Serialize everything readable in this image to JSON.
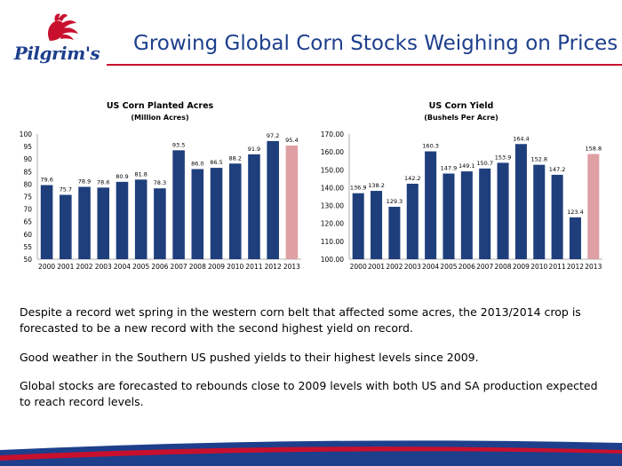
{
  "header": {
    "logo_text": "Pilgrim's",
    "title": "Growing Global Corn Stocks Weighing on Prices"
  },
  "colors": {
    "bar": "#1f3e7c",
    "highlight_bar": "#dea0a3",
    "title": "#1d3f8c",
    "accent": "#c8102e"
  },
  "chart_data": [
    {
      "type": "bar",
      "title": "US Corn Planted Acres",
      "subtitle": "(Million Acres)",
      "categories": [
        "2000",
        "2001",
        "2002",
        "2003",
        "2004",
        "2005",
        "2006",
        "2007",
        "2008",
        "2009",
        "2010",
        "2011",
        "2012",
        "2013"
      ],
      "values": [
        79.6,
        75.7,
        78.9,
        78.6,
        80.9,
        81.8,
        78.3,
        93.5,
        86.0,
        86.5,
        88.2,
        91.9,
        97.2,
        95.4
      ],
      "value_labels": [
        "79.6",
        "75.7",
        "78.9",
        "78.6",
        "80.9",
        "81.8",
        "78.3",
        "93.5",
        "86.0",
        "86.5",
        "88.2",
        "91.9",
        "97.2",
        "95.4"
      ],
      "highlight_index": 13,
      "ylim": [
        50,
        100
      ],
      "yticks": [
        "50",
        "55",
        "60",
        "65",
        "70",
        "75",
        "80",
        "85",
        "90",
        "95",
        "100"
      ],
      "grid": false
    },
    {
      "type": "bar",
      "title": "US Corn Yield",
      "subtitle": "(Bushels Per Acre)",
      "categories": [
        "2000",
        "2001",
        "2002",
        "2003",
        "2004",
        "2005",
        "2006",
        "2007",
        "2008",
        "2009",
        "2010",
        "2011",
        "2012",
        "2013"
      ],
      "values": [
        136.9,
        138.2,
        129.3,
        142.2,
        160.3,
        147.9,
        149.1,
        150.7,
        153.9,
        164.4,
        152.8,
        147.2,
        123.4,
        158.8
      ],
      "value_labels": [
        "136.9",
        "138.2",
        "129.3",
        "142.2",
        "160.3",
        "147.9",
        "149.1",
        "150.7",
        "153.9",
        "164.4",
        "152.8",
        "147.2",
        "123.4",
        "158.8"
      ],
      "highlight_index": 13,
      "ylim": [
        100,
        170
      ],
      "yticks": [
        "100.00",
        "110.00",
        "120.00",
        "130.00",
        "140.00",
        "150.00",
        "160.00",
        "170.00"
      ],
      "grid": false
    }
  ],
  "body": {
    "p1": "Despite a record wet spring in the western corn belt that affected some acres, the 2013/2014 crop is forecasted to be a new record with the second highest yield on record.",
    "p2": "Good weather in the Southern US pushed yields to their highest levels since 2009.",
    "p3": "Global stocks are forecasted to rebounds close to 2009 levels with both US and SA production expected to reach record levels."
  }
}
